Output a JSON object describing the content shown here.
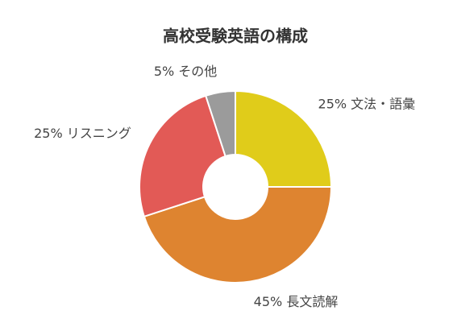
{
  "chart_data": {
    "type": "donut",
    "title": "高校受験英語の構成",
    "categories": [
      "文法・語彙",
      "長文読解",
      "リスニング",
      "その他"
    ],
    "values": [
      25,
      45,
      25,
      5
    ],
    "value_labels": [
      "25%",
      "45%",
      "25%",
      "5%"
    ],
    "colors": [
      "#e0cc1a",
      "#de8430",
      "#e25a56",
      "#9b9b9b"
    ]
  }
}
